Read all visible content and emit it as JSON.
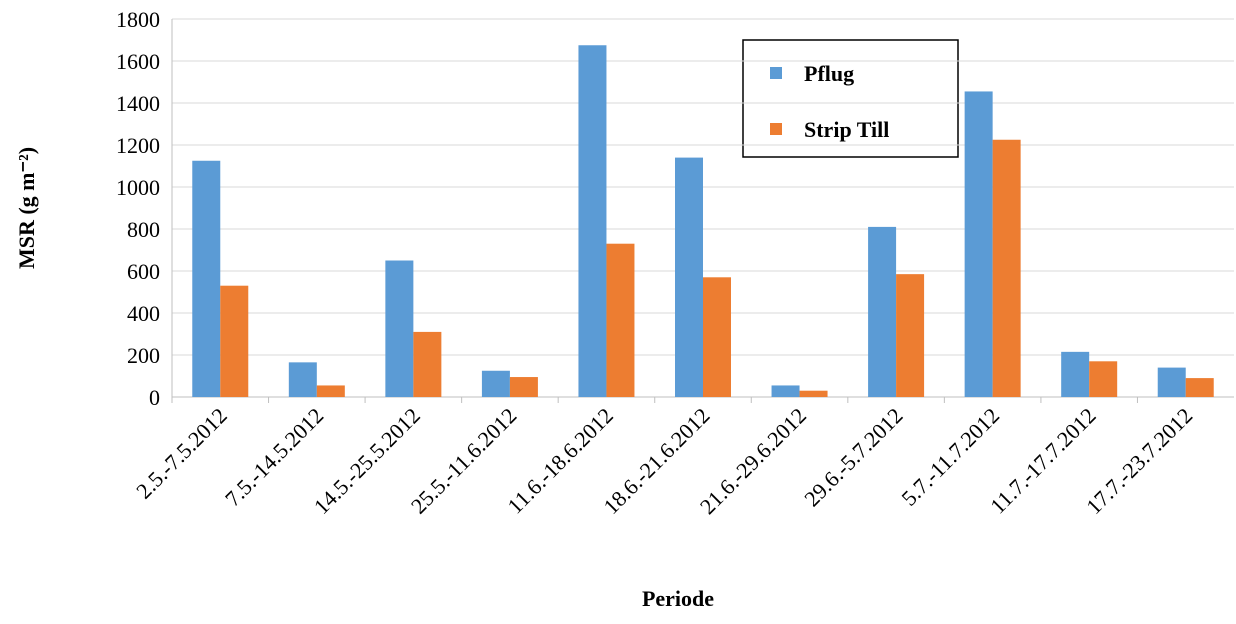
{
  "chart_data": {
    "type": "bar",
    "x_label": "Periode",
    "y_label": "MSR (g m⁻²)",
    "categories": [
      "2.5.-7.5.2012",
      "7.5.-14.5.2012",
      "14.5.-25.5.2012",
      "25.5.-11.6.2012",
      "11.6.-18.6.2012",
      "18.6.-21.6.2012",
      "21.6.-29.6.2012",
      "29.6.-5.7.2012",
      "5.7.-11.7.2012",
      "11.7.-17.7.2012",
      "17.7.-23.7.2012"
    ],
    "series": [
      {
        "name": "Pflug",
        "color": "#5b9bd5",
        "values": [
          1125,
          165,
          650,
          125,
          1675,
          1140,
          55,
          810,
          1455,
          215,
          140
        ]
      },
      {
        "name": "Strip Till",
        "color": "#ed7d31",
        "values": [
          530,
          55,
          310,
          95,
          730,
          570,
          30,
          585,
          1225,
          170,
          90
        ]
      }
    ],
    "ylim": [
      0,
      1800
    ],
    "yticks": [
      0,
      200,
      400,
      600,
      800,
      1000,
      1200,
      1400,
      1600,
      1800
    ],
    "grid": true
  }
}
